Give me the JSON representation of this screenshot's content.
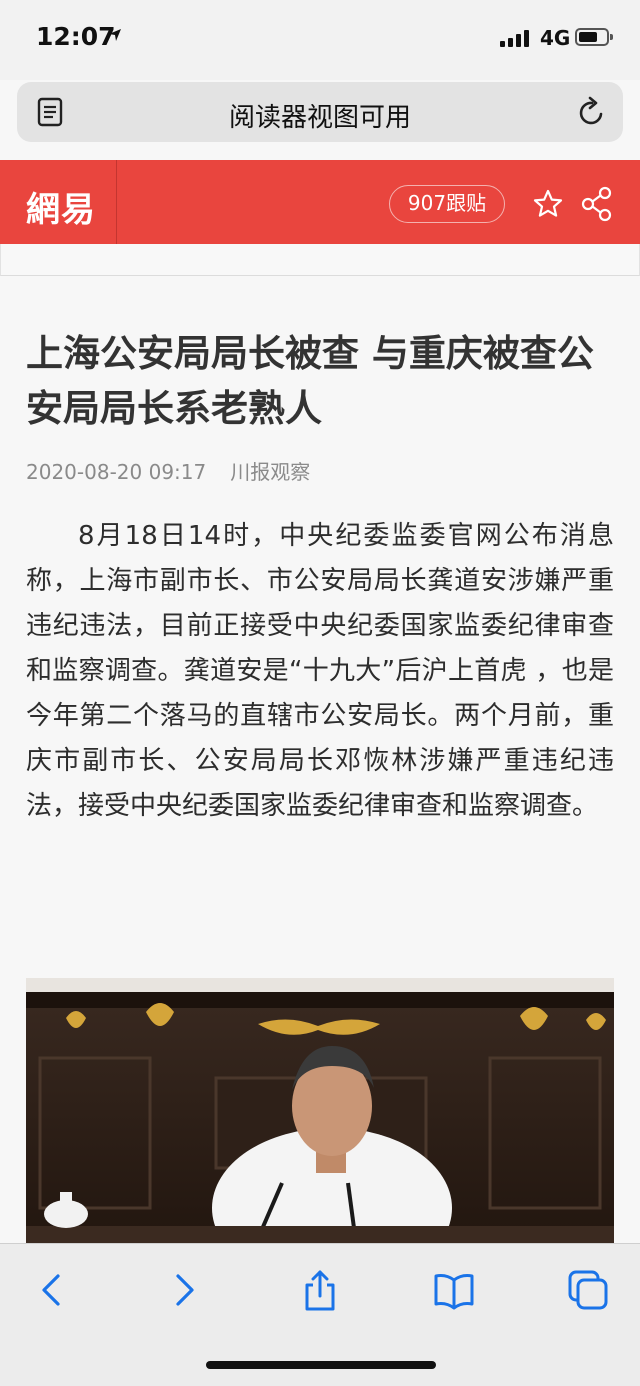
{
  "status_bar": {
    "time": "12:07",
    "network": "4G",
    "icons": [
      "location-arrow-icon",
      "signal-bars-icon",
      "battery-icon"
    ]
  },
  "url_bar": {
    "title": "阅读器视图可用",
    "icons": [
      "reader-view-icon",
      "reload-icon"
    ]
  },
  "site_header": {
    "logo": "網易",
    "comments_label": "907跟贴",
    "icons": [
      "star-icon",
      "share-icon"
    ],
    "brand_color": "#e9453e"
  },
  "article": {
    "title": "上海公安局局长被查 与重庆被查公安局局长系老熟人",
    "date": "2020-08-20 09:17",
    "source": "川报观察",
    "paragraph": "8月18日14时，中央纪委监委官网公布消息称，上海市副市长、市公安局局长龚道安涉嫌严重违纪违法，目前正接受中央纪委国家监委纪律审查和监察调查。龚道安是“十九大”后沪上首虎 ，也是今年第二个落马的直辖市公安局长。两个月前，重庆市副市长、公安局局长邓恢林涉嫌严重违纪违法，接受中央纪委国家监委纪律审查和监察调查。"
  },
  "toolbar": {
    "icons": [
      "back-icon",
      "forward-icon",
      "share-icon",
      "bookmarks-icon",
      "tabs-icon"
    ],
    "accent_color": "#1a73e8"
  }
}
